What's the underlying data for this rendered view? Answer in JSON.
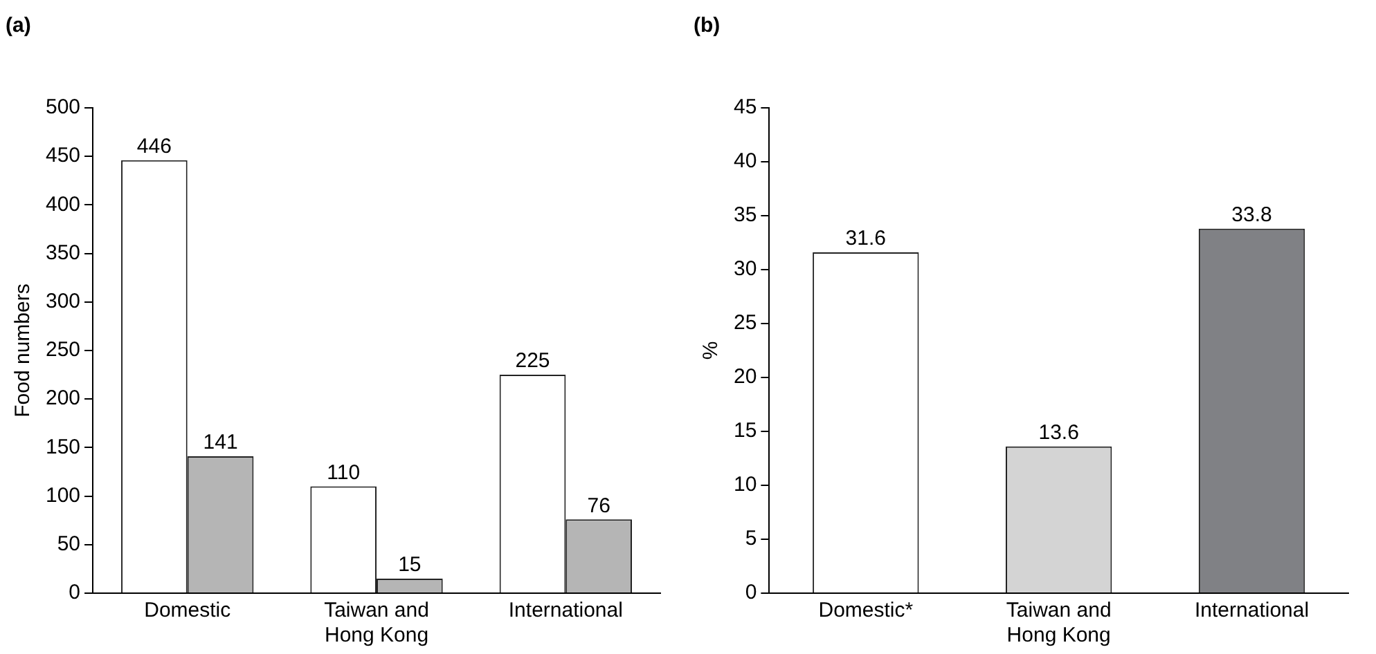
{
  "chart_data": [
    {
      "type": "bar",
      "title": "(a)",
      "ylabel": "Food numbers",
      "categories": [
        "Domestic",
        "Taiwan and Hong Kong",
        "International"
      ],
      "series": [
        {
          "color": "#ffffff",
          "values": [
            446,
            110,
            225
          ]
        },
        {
          "color": "#b5b5b5",
          "values": [
            141,
            15,
            76
          ]
        }
      ],
      "ylim": [
        0,
        500
      ],
      "yticks": [
        0,
        50,
        100,
        150,
        200,
        250,
        300,
        350,
        400,
        450,
        500
      ],
      "grid": false,
      "legend": false,
      "data_labels": true
    },
    {
      "type": "bar",
      "title": "(b)",
      "ylabel": "%",
      "categories": [
        "Domestic*",
        "Taiwan and Hong Kong",
        "International"
      ],
      "values": [
        31.6,
        13.6,
        33.8
      ],
      "colors": [
        "#ffffff",
        "#d4d4d4",
        "#808185"
      ],
      "ylim": [
        0,
        45
      ],
      "yticks": [
        0,
        5,
        10,
        15,
        20,
        25,
        30,
        35,
        40,
        45
      ],
      "grid": false,
      "legend": false,
      "data_labels": true
    }
  ]
}
